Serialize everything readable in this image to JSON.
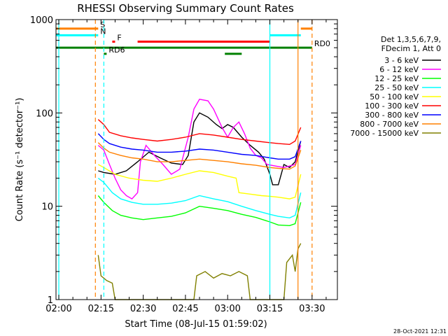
{
  "chart_data": {
    "type": "line",
    "title": "RHESSI Observing Summary Count Rates",
    "xlabel": "Start Time (08-Jul-15 01:59:02)",
    "ylabel": "Count Rate (s⁻¹ detector⁻¹)",
    "y_scale": "log",
    "ylim": [
      1,
      1000
    ],
    "xlim": [
      "01:59",
      "03:39"
    ],
    "x_ticks": [
      "02:00",
      "02:15",
      "02:30",
      "02:45",
      "03:00",
      "03:15",
      "03:30"
    ],
    "y_ticks": [
      "1",
      "10",
      "100",
      "1000"
    ],
    "grid": false,
    "legend_header": [
      "Det 1,3,5,6,7,9,",
      "FDecim 1, Att 0"
    ],
    "legend_position": "right",
    "timestamp": "28-Oct-2021 12:31",
    "series": [
      {
        "name": "3 - 6 keV",
        "color": "#000000",
        "points": [
          [
            "02:14",
            24
          ],
          [
            "02:16",
            23
          ],
          [
            "02:20",
            22
          ],
          [
            "02:24",
            24
          ],
          [
            "02:28",
            30
          ],
          [
            "02:32",
            38
          ],
          [
            "02:36",
            33
          ],
          [
            "02:40",
            29
          ],
          [
            "02:44",
            28
          ],
          [
            "02:46",
            35
          ],
          [
            "02:48",
            80
          ],
          [
            "02:50",
            100
          ],
          [
            "02:53",
            90
          ],
          [
            "02:56",
            75
          ],
          [
            "02:58",
            68
          ],
          [
            "03:00",
            75
          ],
          [
            "03:02",
            70
          ],
          [
            "03:05",
            55
          ],
          [
            "03:08",
            45
          ],
          [
            "03:11",
            38
          ],
          [
            "03:13",
            32
          ],
          [
            "03:15",
            22
          ],
          [
            "03:16",
            17
          ],
          [
            "03:18",
            17
          ],
          [
            "03:20",
            28
          ],
          [
            "03:22",
            26
          ],
          [
            "03:24",
            30
          ],
          [
            "03:26",
            50
          ]
        ]
      },
      {
        "name": "6 - 12 keV",
        "color": "#ff00ff",
        "points": [
          [
            "02:14",
            45
          ],
          [
            "02:16",
            40
          ],
          [
            "02:18",
            28
          ],
          [
            "02:20",
            20
          ],
          [
            "02:22",
            15
          ],
          [
            "02:24",
            13
          ],
          [
            "02:26",
            12
          ],
          [
            "02:28",
            14
          ],
          [
            "02:29",
            30
          ],
          [
            "02:31",
            45
          ],
          [
            "02:34",
            35
          ],
          [
            "02:37",
            28
          ],
          [
            "02:40",
            22
          ],
          [
            "02:43",
            25
          ],
          [
            "02:46",
            55
          ],
          [
            "02:48",
            110
          ],
          [
            "02:50",
            140
          ],
          [
            "02:53",
            135
          ],
          [
            "02:55",
            110
          ],
          [
            "02:58",
            70
          ],
          [
            "03:00",
            55
          ],
          [
            "03:02",
            70
          ],
          [
            "03:04",
            80
          ],
          [
            "03:06",
            60
          ],
          [
            "03:08",
            42
          ],
          [
            "03:10",
            35
          ],
          [
            "03:12",
            33
          ],
          [
            "03:14",
            28
          ],
          [
            "03:17",
            27
          ],
          [
            "03:20",
            26
          ],
          [
            "03:24",
            28
          ],
          [
            "03:26",
            45
          ]
        ]
      },
      {
        "name": "12 - 25 keV",
        "color": "#00ff00",
        "points": [
          [
            "02:14",
            13
          ],
          [
            "02:16",
            11
          ],
          [
            "02:19",
            9
          ],
          [
            "02:22",
            8
          ],
          [
            "02:26",
            7.5
          ],
          [
            "02:30",
            7.2
          ],
          [
            "02:35",
            7.5
          ],
          [
            "02:40",
            7.8
          ],
          [
            "02:45",
            8.5
          ],
          [
            "02:50",
            10
          ],
          [
            "02:55",
            9.5
          ],
          [
            "03:00",
            9
          ],
          [
            "03:05",
            8.2
          ],
          [
            "03:10",
            7.6
          ],
          [
            "03:15",
            6.8
          ],
          [
            "03:18",
            6.3
          ],
          [
            "03:22",
            6.2
          ],
          [
            "03:24",
            6.5
          ],
          [
            "03:26",
            11
          ]
        ]
      },
      {
        "name": "25 - 50 keV",
        "color": "#00ffff",
        "points": [
          [
            "02:14",
            20
          ],
          [
            "02:16",
            18
          ],
          [
            "02:19",
            14
          ],
          [
            "02:22",
            12
          ],
          [
            "02:26",
            11
          ],
          [
            "02:30",
            10.5
          ],
          [
            "02:35",
            10.5
          ],
          [
            "02:40",
            10.8
          ],
          [
            "02:45",
            11.5
          ],
          [
            "02:50",
            13
          ],
          [
            "02:55",
            12
          ],
          [
            "03:00",
            11.2
          ],
          [
            "03:05",
            10
          ],
          [
            "03:10",
            9
          ],
          [
            "03:15",
            8.2
          ],
          [
            "03:18",
            7.8
          ],
          [
            "03:22",
            7.5
          ],
          [
            "03:24",
            8
          ],
          [
            "03:26",
            14
          ]
        ]
      },
      {
        "name": "50 - 100 keV",
        "color": "#ffff00",
        "points": [
          [
            "02:14",
            28
          ],
          [
            "02:16",
            26
          ],
          [
            "02:20",
            22
          ],
          [
            "02:25",
            20
          ],
          [
            "02:30",
            19
          ],
          [
            "02:35",
            18.5
          ],
          [
            "02:40",
            20
          ],
          [
            "02:45",
            22
          ],
          [
            "02:50",
            24
          ],
          [
            "02:55",
            23
          ],
          [
            "03:00",
            21
          ],
          [
            "03:03",
            20
          ],
          [
            "03:04",
            14
          ],
          [
            "03:08",
            13.5
          ],
          [
            "03:12",
            13
          ],
          [
            "03:15",
            12.8
          ],
          [
            "03:18",
            12.5
          ],
          [
            "03:22",
            12
          ],
          [
            "03:24",
            12.5
          ],
          [
            "03:26",
            22
          ]
        ]
      },
      {
        "name": "100 - 300 keV",
        "color": "#ff0000",
        "points": [
          [
            "02:14",
            85
          ],
          [
            "02:16",
            75
          ],
          [
            "02:18",
            62
          ],
          [
            "02:22",
            57
          ],
          [
            "02:26",
            54
          ],
          [
            "02:30",
            52
          ],
          [
            "02:35",
            50
          ],
          [
            "02:40",
            52
          ],
          [
            "02:45",
            55
          ],
          [
            "02:50",
            60
          ],
          [
            "02:55",
            58
          ],
          [
            "03:00",
            55
          ],
          [
            "03:05",
            52
          ],
          [
            "03:10",
            50
          ],
          [
            "03:15",
            48
          ],
          [
            "03:18",
            47
          ],
          [
            "03:22",
            46
          ],
          [
            "03:24",
            50
          ],
          [
            "03:26",
            70
          ]
        ]
      },
      {
        "name": "300 - 800 keV",
        "color": "#0000ff",
        "points": [
          [
            "02:14",
            60
          ],
          [
            "02:16",
            52
          ],
          [
            "02:18",
            47
          ],
          [
            "02:22",
            43
          ],
          [
            "02:26",
            41
          ],
          [
            "02:30",
            40
          ],
          [
            "02:35",
            38
          ],
          [
            "02:40",
            38
          ],
          [
            "02:45",
            39
          ],
          [
            "02:50",
            41
          ],
          [
            "02:55",
            40
          ],
          [
            "03:00",
            38
          ],
          [
            "03:05",
            36
          ],
          [
            "03:10",
            35
          ],
          [
            "03:15",
            33
          ],
          [
            "03:18",
            32
          ],
          [
            "03:22",
            32
          ],
          [
            "03:24",
            34
          ],
          [
            "03:26",
            50
          ]
        ]
      },
      {
        "name": "800 - 7000 keV",
        "color": "#ff8000",
        "points": [
          [
            "02:14",
            48
          ],
          [
            "02:16",
            42
          ],
          [
            "02:18",
            38
          ],
          [
            "02:22",
            35
          ],
          [
            "02:26",
            33
          ],
          [
            "02:30",
            32
          ],
          [
            "02:35",
            30
          ],
          [
            "02:40",
            30
          ],
          [
            "02:45",
            31
          ],
          [
            "02:50",
            32
          ],
          [
            "02:55",
            31
          ],
          [
            "03:00",
            30
          ],
          [
            "03:05",
            28.5
          ],
          [
            "03:10",
            27.5
          ],
          [
            "03:15",
            26
          ],
          [
            "03:18",
            25.5
          ],
          [
            "03:22",
            25
          ],
          [
            "03:24",
            27
          ],
          [
            "03:26",
            40
          ]
        ]
      },
      {
        "name": "7000 - 15000 keV",
        "color": "#808000",
        "points": [
          [
            "02:14",
            3
          ],
          [
            "02:15",
            1.8
          ],
          [
            "02:17",
            1.6
          ],
          [
            "02:19",
            1.5
          ],
          [
            "02:20",
            1
          ],
          [
            "02:48",
            1
          ],
          [
            "02:49",
            1.8
          ],
          [
            "02:52",
            2
          ],
          [
            "02:55",
            1.7
          ],
          [
            "02:58",
            1.9
          ],
          [
            "03:01",
            1.8
          ],
          [
            "03:04",
            2
          ],
          [
            "03:07",
            1.8
          ],
          [
            "03:08",
            1
          ],
          [
            "03:20",
            1
          ],
          [
            "03:21",
            2.5
          ],
          [
            "03:23",
            3
          ],
          [
            "03:24",
            2
          ],
          [
            "03:25",
            3.5
          ],
          [
            "03:26",
            4
          ]
        ]
      }
    ],
    "flag_bars": [
      {
        "label": "S",
        "label_color": "#00ffff",
        "color": "#ff8000",
        "value": 800,
        "ranges": [
          [
            "01:59",
            "02:14"
          ],
          [
            "03:26",
            "03:30"
          ]
        ]
      },
      {
        "label": "N",
        "label_color": "#00ffff",
        "color": "#00ffff",
        "value": 680,
        "ranges": [
          [
            "01:59",
            "02:14"
          ],
          [
            "03:15",
            "03:26"
          ]
        ]
      },
      {
        "label": "F",
        "label_color": "#ff0000",
        "color": "#ff0000",
        "value": 580,
        "ranges": [
          [
            "02:19",
            "02:20"
          ],
          [
            "02:28",
            "03:15"
          ]
        ]
      },
      {
        "label": "RD0",
        "label_color": "#008000",
        "color": "#008000",
        "value": 500,
        "ranges": [
          [
            "01:59",
            "03:30"
          ]
        ]
      },
      {
        "label": "RD6",
        "label_color": "#008000",
        "color": "#008000",
        "value": 430,
        "ranges": [
          [
            "02:16",
            "02:17"
          ],
          [
            "02:59",
            "03:05"
          ]
        ]
      }
    ],
    "vertical_lines": [
      {
        "time": "02:13",
        "color": "#ff8000",
        "style": "dashed"
      },
      {
        "time": "02:16",
        "color": "#00ffff",
        "style": "dashed"
      },
      {
        "time": "03:15",
        "color": "#00ffff",
        "style": "solid"
      },
      {
        "time": "03:25",
        "color": "#ff8000",
        "style": "solid"
      },
      {
        "time": "03:30",
        "color": "#ff8000",
        "style": "dashed"
      },
      {
        "time": "02:00",
        "color": "#00ffff",
        "style": "solid"
      }
    ]
  }
}
